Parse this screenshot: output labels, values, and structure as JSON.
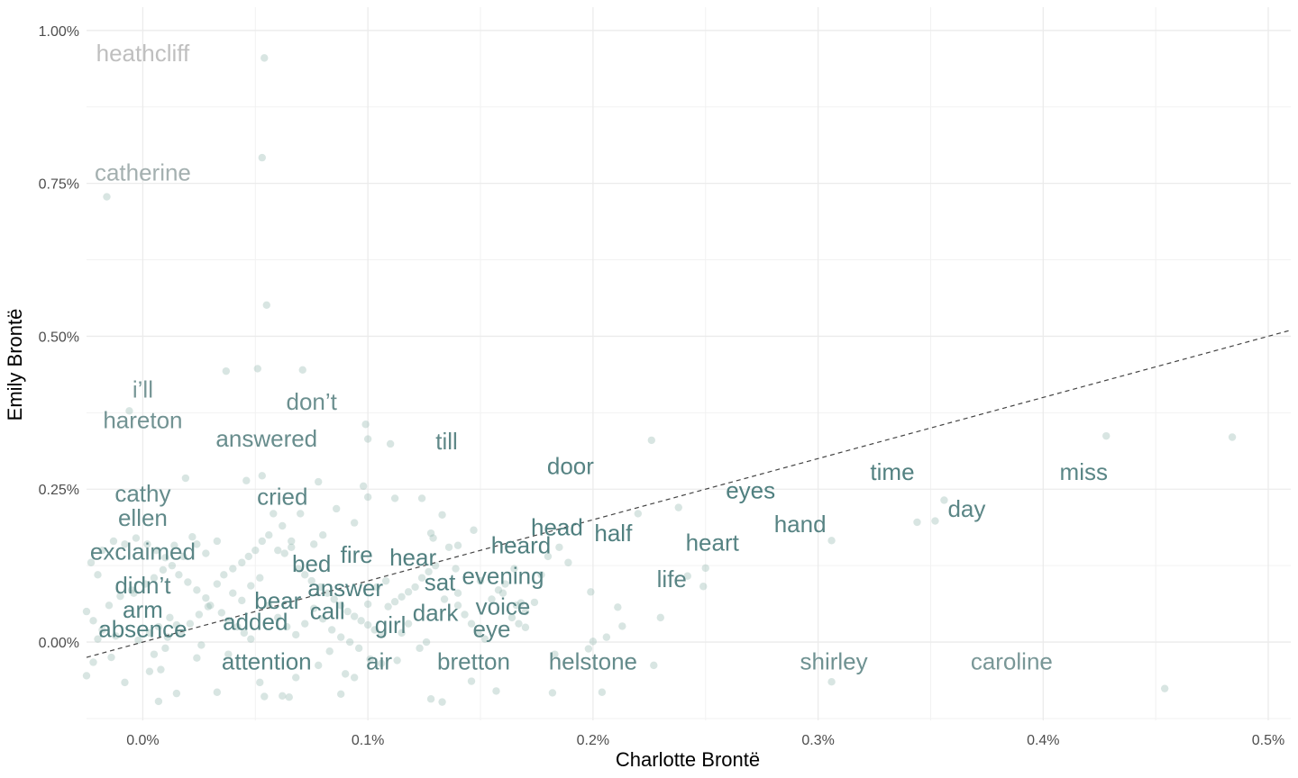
{
  "chart_data": {
    "type": "scatter",
    "title": "",
    "xlabel": "Charlotte Brontë",
    "ylabel": "Emily Brontë",
    "xlim": [
      -0.00025,
      0.0051
    ],
    "ylim": [
      -0.00128,
      0.01038
    ],
    "x_ticks": [
      0,
      0.001,
      0.002,
      0.003,
      0.004,
      0.005
    ],
    "x_tick_labels": [
      "0.0%",
      "0.1%",
      "0.2%",
      "0.3%",
      "0.4%",
      "0.5%"
    ],
    "y_ticks": [
      0,
      0.0025,
      0.005,
      0.0075,
      0.01
    ],
    "y_tick_labels": [
      "0.00%",
      "0.25%",
      "0.50%",
      "0.75%",
      "1.00%"
    ],
    "grid": true,
    "reference_line": {
      "style": "dashed",
      "color": "#444444",
      "points": [
        [
          -0.00025,
          -0.00025
        ],
        [
          0.0051,
          0.0051
        ]
      ]
    },
    "label_color_scale": {
      "low": "#4f7f7f",
      "high": "#bfbfbf"
    },
    "point_color": "#8fb5ad",
    "labeled_words": [
      {
        "word": "heathcliff",
        "x": 0.0,
        "y": 0.0096
      },
      {
        "word": "catherine",
        "x": 0.0,
        "y": 0.00765
      },
      {
        "word": "i’ll",
        "x": 0.0,
        "y": 0.0041
      },
      {
        "word": "hareton",
        "x": 0.0,
        "y": 0.0036
      },
      {
        "word": "cathy",
        "x": 0.0,
        "y": 0.0024
      },
      {
        "word": "ellen",
        "x": 0.0,
        "y": 0.002
      },
      {
        "word": "exclaimed",
        "x": 0.0,
        "y": 0.00145
      },
      {
        "word": "didn’t",
        "x": 0.0,
        "y": 0.0009
      },
      {
        "word": "arm",
        "x": 0.0,
        "y": 0.0005
      },
      {
        "word": "absence",
        "x": 0.0,
        "y": 0.00018
      },
      {
        "word": "don’t",
        "x": 0.00075,
        "y": 0.0039
      },
      {
        "word": "answered",
        "x": 0.00055,
        "y": 0.0033
      },
      {
        "word": "cried",
        "x": 0.00062,
        "y": 0.00235
      },
      {
        "word": "bed",
        "x": 0.00075,
        "y": 0.00125
      },
      {
        "word": "fire",
        "x": 0.00095,
        "y": 0.0014
      },
      {
        "word": "hear",
        "x": 0.0012,
        "y": 0.00135
      },
      {
        "word": "answer",
        "x": 0.0009,
        "y": 0.00085
      },
      {
        "word": "bear",
        "x": 0.0006,
        "y": 0.00065
      },
      {
        "word": "call",
        "x": 0.00082,
        "y": 0.00048
      },
      {
        "word": "added",
        "x": 0.0005,
        "y": 0.0003
      },
      {
        "word": "girl",
        "x": 0.0011,
        "y": 0.00025
      },
      {
        "word": "attention",
        "x": 0.00055,
        "y": -0.00035
      },
      {
        "word": "air",
        "x": 0.00105,
        "y": -0.00035
      },
      {
        "word": "till",
        "x": 0.00135,
        "y": 0.00325
      },
      {
        "word": "door",
        "x": 0.0019,
        "y": 0.00285
      },
      {
        "word": "head",
        "x": 0.00184,
        "y": 0.00185
      },
      {
        "word": "half",
        "x": 0.00209,
        "y": 0.00175
      },
      {
        "word": "heard",
        "x": 0.00168,
        "y": 0.00155
      },
      {
        "word": "evening",
        "x": 0.0016,
        "y": 0.00105
      },
      {
        "word": "sat",
        "x": 0.00132,
        "y": 0.00095
      },
      {
        "word": "voice",
        "x": 0.0016,
        "y": 0.00055
      },
      {
        "word": "dark",
        "x": 0.0013,
        "y": 0.00045
      },
      {
        "word": "eye",
        "x": 0.00155,
        "y": 0.00018
      },
      {
        "word": "bretton",
        "x": 0.00147,
        "y": -0.00035
      },
      {
        "word": "helstone",
        "x": 0.002,
        "y": -0.00035
      },
      {
        "word": "life",
        "x": 0.00235,
        "y": 0.001
      },
      {
        "word": "heart",
        "x": 0.00253,
        "y": 0.0016
      },
      {
        "word": "eyes",
        "x": 0.0027,
        "y": 0.00245
      },
      {
        "word": "hand",
        "x": 0.00292,
        "y": 0.0019
      },
      {
        "word": "time",
        "x": 0.00333,
        "y": 0.00275
      },
      {
        "word": "day",
        "x": 0.00366,
        "y": 0.00215
      },
      {
        "word": "miss",
        "x": 0.00418,
        "y": 0.00275
      },
      {
        "word": "shirley",
        "x": 0.00307,
        "y": -0.00035
      },
      {
        "word": "caroline",
        "x": 0.00386,
        "y": -0.00035
      }
    ],
    "points": [
      [
        0.00054,
        0.00955
      ],
      [
        0.00053,
        0.00792
      ],
      [
        -0.00016,
        0.00728
      ],
      [
        0.00055,
        0.00551
      ],
      [
        0.00051,
        0.00447
      ],
      [
        0.00071,
        0.00445
      ],
      [
        0.00037,
        0.00443
      ],
      [
        -6e-05,
        0.00378
      ],
      [
        0.00099,
        0.00356
      ],
      [
        0.001,
        0.00332
      ],
      [
        0.0011,
        0.00324
      ],
      [
        0.00226,
        0.0033
      ],
      [
        0.00428,
        0.00337
      ],
      [
        0.00484,
        0.00335
      ],
      [
        0.00019,
        0.00268
      ],
      [
        0.00053,
        0.00272
      ],
      [
        0.00078,
        0.00262
      ],
      [
        0.00046,
        0.00264
      ],
      [
        0.00098,
        0.00255
      ],
      [
        0.001,
        0.00237
      ],
      [
        0.00112,
        0.00235
      ],
      [
        0.00124,
        0.00235
      ],
      [
        0.00238,
        0.0022
      ],
      [
        0.0022,
        0.0021
      ],
      [
        0.00356,
        0.00232
      ],
      [
        0.00344,
        0.00196
      ],
      [
        0.00352,
        0.00198
      ],
      [
        0.00306,
        0.00166
      ],
      [
        0.0025,
        0.00121
      ],
      [
        0.00242,
        0.00108
      ],
      [
        0.00249,
        0.00091
      ],
      [
        0.0023,
        0.0004
      ],
      [
        0.00211,
        0.00057
      ],
      [
        0.00213,
        0.00026
      ],
      [
        0.00206,
        8e-05
      ],
      [
        0.002,
        1e-05
      ],
      [
        0.00199,
        0.00082
      ],
      [
        0.00189,
        0.0013
      ],
      [
        0.00166,
        0.0006
      ],
      [
        0.00168,
        0.00064
      ],
      [
        0.0016,
        0.0008
      ],
      [
        0.00147,
        0.00183
      ],
      [
        0.0014,
        0.00158
      ],
      [
        0.00133,
        0.00208
      ],
      [
        0.00128,
        0.00178
      ],
      [
        0.00129,
        0.0017
      ],
      [
        0.00139,
        0.0012
      ],
      [
        0.0015,
        0.001
      ],
      [
        0.00165,
        0.0012
      ],
      [
        0.0017,
        0.00024
      ],
      [
        0.00146,
        -0.00064
      ],
      [
        0.00157,
        -0.0008
      ],
      [
        0.00128,
        -0.00093
      ],
      [
        0.00133,
        -0.00098
      ],
      [
        0.00183,
        -0.0002
      ],
      [
        0.00182,
        -0.00083
      ],
      [
        0.00198,
        -0.00011
      ],
      [
        0.00204,
        -0.00082
      ],
      [
        0.00227,
        -0.00038
      ],
      [
        0.00306,
        -0.00065
      ],
      [
        0.00454,
        -0.00076
      ],
      [
        0.00054,
        -0.00089
      ],
      [
        0.00062,
        -0.00088
      ],
      [
        0.00065,
        -0.0009
      ],
      [
        0.00088,
        -0.00085
      ],
      [
        0.00094,
        -0.00058
      ],
      [
        0.00106,
        -0.00035
      ],
      [
        0.00113,
        -0.0003
      ],
      [
        0.00123,
        -0.0001
      ],
      [
        0.00126,
        0.0
      ],
      [
        0.00033,
        -0.00082
      ],
      [
        0.00015,
        -0.00084
      ],
      [
        7e-05,
        -0.00097
      ],
      [
        3e-05,
        -0.00048
      ],
      [
        -8e-05,
        -0.00066
      ],
      [
        -0.00025,
        -0.00055
      ],
      [
        -0.00022,
        -0.00033
      ],
      [
        -0.00014,
        -0.00025
      ],
      [
        5e-05,
        -0.0002
      ],
      [
        8e-05,
        -0.00045
      ],
      [
        0.00024,
        -0.00026
      ],
      [
        0.00038,
        -0.0002
      ],
      [
        0.00052,
        -0.00066
      ],
      [
        0.00068,
        -0.00058
      ],
      [
        0.00078,
        -0.00038
      ],
      [
        0.00083,
        -0.00015
      ],
      [
        0.0009,
        -0.00052
      ],
      [
        0.00101,
        -0.00028
      ],
      [
        -0.00025,
        0.0005
      ],
      [
        -0.00022,
        0.00035
      ],
      [
        -0.00018,
        0.0002
      ],
      [
        -0.0002,
        5e-05
      ],
      [
        -0.00012,
        0.0001
      ],
      [
        -0.00015,
        0.0006
      ],
      [
        -0.0001,
        0.00075
      ],
      [
        -5e-05,
        0.00085
      ],
      [
        -0.0002,
        0.0011
      ],
      [
        -0.00023,
        0.0013
      ],
      [
        -0.00018,
        0.0015
      ],
      [
        -0.00013,
        0.00165
      ],
      [
        -8e-05,
        0.0016
      ],
      [
        -3e-05,
        0.0017
      ],
      [
        2e-05,
        0.0016
      ],
      [
        6e-05,
        0.0015
      ],
      [
        0.0001,
        0.00138
      ],
      [
        0.00013,
        0.00125
      ],
      [
        0.00016,
        0.0011
      ],
      [
        0.0002,
        0.00098
      ],
      [
        0.00024,
        0.00085
      ],
      [
        0.00028,
        0.00072
      ],
      [
        0.0003,
        0.0006
      ],
      [
        0.00035,
        0.00048
      ],
      [
        0.00038,
        0.00035
      ],
      [
        0.00042,
        0.00025
      ],
      [
        0.00045,
        0.00015
      ],
      [
        0.00048,
        5e-05
      ],
      [
        0.00012,
        0.0004
      ],
      [
        0.00015,
        0.00028
      ],
      [
        0.00017,
        0.00015
      ],
      [
        0.00021,
        0.0003
      ],
      [
        0.00025,
        0.00045
      ],
      [
        0.00029,
        0.00058
      ],
      [
        0.00033,
        0.00095
      ],
      [
        0.00036,
        0.0011
      ],
      [
        0.0004,
        0.0012
      ],
      [
        0.00044,
        0.0013
      ],
      [
        0.00047,
        0.0014
      ],
      [
        0.0005,
        0.0015
      ],
      [
        0.00053,
        0.00165
      ],
      [
        0.00056,
        0.00175
      ],
      [
        0.0006,
        0.0015
      ],
      [
        0.00063,
        0.00145
      ],
      [
        0.00066,
        0.00155
      ],
      [
        0.00069,
        0.0012
      ],
      [
        0.00072,
        0.0011
      ],
      [
        0.00075,
        0.001
      ],
      [
        0.00079,
        0.0009
      ],
      [
        0.00082,
        0.0008
      ],
      [
        0.00085,
        0.0007
      ],
      [
        0.00088,
        0.0006
      ],
      [
        0.00091,
        0.0005
      ],
      [
        0.00094,
        0.00042
      ],
      [
        0.00097,
        0.00035
      ],
      [
        0.001,
        0.00028
      ],
      [
        0.00103,
        0.0002
      ],
      [
        0.00106,
        0.00012
      ],
      [
        0.00109,
        0.00058
      ],
      [
        0.00112,
        0.00066
      ],
      [
        0.00115,
        0.00074
      ],
      [
        0.00118,
        0.00082
      ],
      [
        0.00121,
        0.0009
      ],
      [
        0.00124,
        0.00105
      ],
      [
        0.00127,
        0.00115
      ],
      [
        0.0013,
        0.00125
      ],
      [
        0.00094,
        0.00195
      ],
      [
        0.00086,
        0.00218
      ],
      [
        0.0008,
        0.00175
      ],
      [
        0.00076,
        0.0016
      ],
      [
        0.0007,
        0.0021
      ],
      [
        0.00066,
        0.00165
      ],
      [
        0.00062,
        0.0019
      ],
      [
        0.00058,
        0.0021
      ],
      [
        0.00033,
        0.00165
      ],
      [
        0.00028,
        0.00145
      ],
      [
        0.00024,
        0.0016
      ],
      [
        0.00022,
        0.00172
      ],
      [
        0.00018,
        0.0014
      ],
      [
        0.00014,
        0.00158
      ],
      [
        9e-05,
        0.00118
      ],
      [
        5e-05,
        0.00105
      ],
      [
        1e-05,
        0.00095
      ],
      [
        -4e-05,
        0.0008
      ],
      [
        0.0014,
        0.0006
      ],
      [
        0.00143,
        0.00045
      ],
      [
        0.00146,
        0.0003
      ],
      [
        0.00149,
        0.00015
      ],
      [
        0.00152,
        5e-05
      ],
      [
        0.00155,
        0.0007
      ],
      [
        0.00158,
        0.00085
      ],
      [
        0.00161,
        0.00095
      ],
      [
        0.00164,
        0.0004
      ],
      [
        0.00167,
        0.0003
      ],
      [
        0.0017,
        0.0005
      ],
      [
        0.00174,
        0.00065
      ],
      [
        0.00177,
        0.0011
      ],
      [
        0.0018,
        0.0014
      ],
      [
        0.00185,
        0.00155
      ],
      [
        0.00136,
        0.00155
      ],
      [
        0.0014,
        0.0008
      ],
      [
        0.00134,
        0.0007
      ],
      [
        0.00118,
        0.0003
      ],
      [
        0.00115,
        0.00015
      ],
      [
        0.0004,
        0.0008
      ],
      [
        0.00044,
        0.00068
      ],
      [
        0.00048,
        0.00092
      ],
      [
        0.00052,
        0.00105
      ],
      [
        0.00056,
        0.0006
      ],
      [
        0.0006,
        0.0004
      ],
      [
        0.00064,
        0.00025
      ],
      [
        0.00068,
        0.00012
      ],
      [
        0.00072,
        0.0003
      ],
      [
        0.00076,
        0.00055
      ],
      [
        0.0008,
        0.00038
      ],
      [
        0.00084,
        0.0002
      ],
      [
        0.00088,
        8e-05
      ],
      [
        0.00092,
        0.0
      ],
      [
        0.00096,
        -0.0001
      ],
      [
        0.001,
        0.00062
      ],
      [
        0.00104,
        0.0009
      ],
      [
        0.00108,
        0.001
      ],
      [
        0.00026,
        -5e-05
      ],
      [
        0.0001,
        -0.0001
      ],
      [
        -2e-05,
        3e-05
      ],
      [
        3e-05,
        0.00015
      ],
      [
        7e-05,
        0.00025
      ],
      [
        0.00011,
        8e-05
      ]
    ]
  }
}
